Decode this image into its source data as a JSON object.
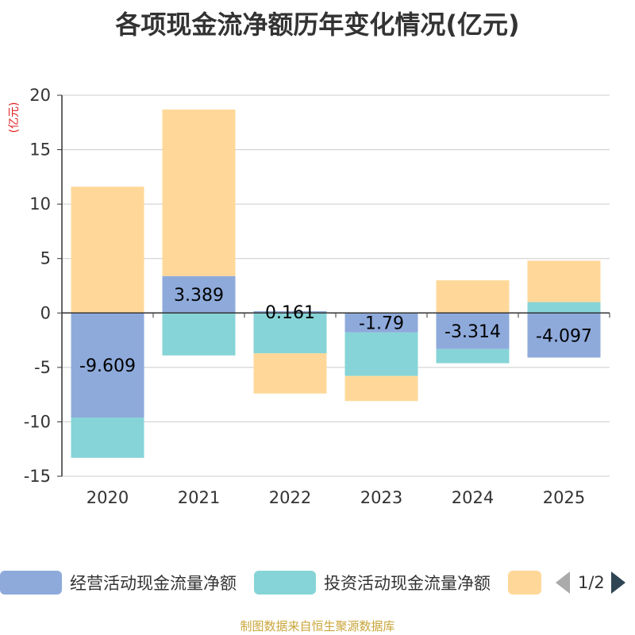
{
  "chart_data": {
    "type": "bar",
    "stacked": true,
    "title": "各项现金流净额历年变化情况(亿元)",
    "ylabel": "(亿元)",
    "categories": [
      "2020",
      "2021",
      "2022",
      "2023",
      "2024",
      "2025"
    ],
    "yticks": [
      20,
      15,
      10,
      5,
      0,
      -5,
      -10,
      -15
    ],
    "ylim": [
      -15,
      20
    ],
    "series": [
      {
        "name": "经营活动现金流量净额",
        "color": "#8eaadb",
        "values": [
          -9.609,
          3.389,
          0.161,
          -1.79,
          -3.314,
          -4.097
        ],
        "labels": [
          "-9.609",
          "3.389",
          "0.161",
          "-1.79",
          "-3.314",
          "-4.097"
        ]
      },
      {
        "name": "投资活动现金流量净额",
        "color": "#86d4d7",
        "values": [
          -3.7,
          -3.9,
          -3.7,
          -4.0,
          -1.3,
          1.0
        ]
      },
      {
        "name": "",
        "color": "#ffd899",
        "values": [
          11.6,
          15.3,
          -3.7,
          -2.3,
          3.0,
          3.8
        ]
      }
    ]
  },
  "legend": {
    "items": [
      {
        "label": "经营活动现金流量净额",
        "color": "#8eaadb"
      },
      {
        "label": "投资活动现金流量净额",
        "color": "#86d4d7"
      },
      {
        "label": "",
        "color": "#ffd899"
      }
    ],
    "pager": "1/2"
  },
  "source": "制图数据来自恒生聚源数据库"
}
